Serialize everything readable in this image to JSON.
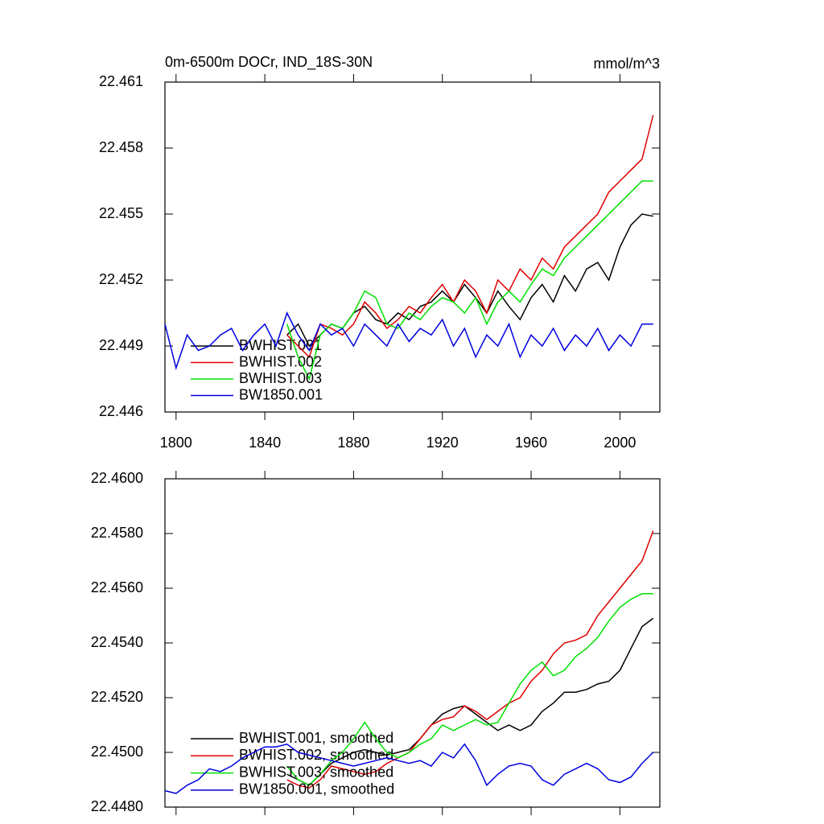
{
  "chart_data": [
    {
      "type": "line",
      "title": "0m-6500m DOCr, IND_18S-30N",
      "units": "mmol/m^3",
      "x": [
        1795,
        1800,
        1805,
        1810,
        1815,
        1820,
        1825,
        1830,
        1835,
        1840,
        1845,
        1850,
        1855,
        1860,
        1865,
        1870,
        1875,
        1880,
        1885,
        1890,
        1895,
        1900,
        1905,
        1910,
        1915,
        1920,
        1925,
        1930,
        1935,
        1940,
        1945,
        1950,
        1955,
        1960,
        1965,
        1970,
        1975,
        1980,
        1985,
        1990,
        1995,
        2000,
        2005,
        2010,
        2015
      ],
      "xlim": [
        1795,
        2018
      ],
      "xticks": [
        1800,
        1840,
        1880,
        1920,
        1960,
        2000
      ],
      "x_tick_labels": true,
      "ylim": [
        22.446,
        22.461
      ],
      "yticks": [
        22.446,
        22.449,
        22.452,
        22.455,
        22.458,
        22.461
      ],
      "series": [
        {
          "name": "BWHIST.001",
          "color": "#000000",
          "values": [
            null,
            null,
            null,
            null,
            null,
            null,
            null,
            null,
            null,
            null,
            null,
            22.4495,
            22.45,
            22.449,
            22.4495,
            22.45,
            22.4498,
            22.4505,
            22.4508,
            22.4502,
            22.45,
            22.4505,
            22.4502,
            22.4508,
            22.451,
            22.4515,
            22.451,
            22.4518,
            22.4512,
            22.4505,
            22.4515,
            22.4508,
            22.4502,
            22.4512,
            22.4518,
            22.451,
            22.4522,
            22.4515,
            22.4525,
            22.4528,
            22.452,
            22.4535,
            22.4545,
            22.455,
            22.4549
          ]
        },
        {
          "name": "BWHIST.002",
          "color": "#e00000",
          "values": [
            null,
            null,
            null,
            null,
            null,
            null,
            null,
            null,
            null,
            null,
            null,
            22.4495,
            22.449,
            22.4485,
            22.45,
            22.4498,
            22.4495,
            22.45,
            22.451,
            22.4505,
            22.4498,
            22.4502,
            22.4508,
            22.4505,
            22.4512,
            22.4518,
            22.451,
            22.452,
            22.4515,
            22.4505,
            22.452,
            22.4515,
            22.4525,
            22.452,
            22.453,
            22.4525,
            22.4535,
            22.454,
            22.4545,
            22.455,
            22.456,
            22.4565,
            22.457,
            22.4575,
            22.4595
          ]
        },
        {
          "name": "BWHIST.003",
          "color": "#00e000",
          "values": [
            null,
            null,
            null,
            null,
            null,
            null,
            null,
            null,
            null,
            null,
            null,
            22.45,
            22.4485,
            22.4475,
            22.4495,
            22.45,
            22.4498,
            22.4505,
            22.4515,
            22.4512,
            22.45,
            22.4498,
            22.4505,
            22.4502,
            22.4508,
            22.4512,
            22.451,
            22.4505,
            22.4512,
            22.45,
            22.451,
            22.4515,
            22.451,
            22.4518,
            22.4525,
            22.4522,
            22.453,
            22.4535,
            22.454,
            22.4545,
            22.455,
            22.4555,
            22.456,
            22.4565,
            22.4565
          ]
        },
        {
          "name": "BW1850.001",
          "color": "#0000e0",
          "values": [
            22.45,
            22.448,
            22.4495,
            22.4488,
            22.449,
            22.4495,
            22.4498,
            22.4488,
            22.4495,
            22.45,
            22.449,
            22.4505,
            22.4495,
            22.4488,
            22.45,
            22.4495,
            22.4498,
            22.449,
            22.45,
            22.4495,
            22.449,
            22.45,
            22.4492,
            22.4498,
            22.4495,
            22.4502,
            22.449,
            22.4498,
            22.4485,
            22.4495,
            22.449,
            22.45,
            22.4485,
            22.4495,
            22.449,
            22.4498,
            22.4488,
            22.4495,
            22.449,
            22.4498,
            22.4488,
            22.4495,
            22.449,
            22.45,
            22.45
          ]
        }
      ]
    },
    {
      "type": "line",
      "x": [
        1795,
        1800,
        1805,
        1810,
        1815,
        1820,
        1825,
        1830,
        1835,
        1840,
        1845,
        1850,
        1855,
        1860,
        1865,
        1870,
        1875,
        1880,
        1885,
        1890,
        1895,
        1900,
        1905,
        1910,
        1915,
        1920,
        1925,
        1930,
        1935,
        1940,
        1945,
        1950,
        1955,
        1960,
        1965,
        1970,
        1975,
        1980,
        1985,
        1990,
        1995,
        2000,
        2005,
        2010,
        2015
      ],
      "xlim": [
        1795,
        2018
      ],
      "xticks": [
        1800,
        1840,
        1880,
        1920,
        1960,
        2000
      ],
      "x_tick_labels": false,
      "ylim": [
        22.448,
        22.46
      ],
      "yticks": [
        {
          "value": 22.448,
          "label": "22.4480"
        },
        {
          "value": 22.45,
          "label": "22.4500"
        },
        {
          "value": 22.452,
          "label": "22.4520"
        },
        {
          "value": 22.454,
          "label": "22.4540"
        },
        {
          "value": 22.456,
          "label": "22.4560"
        },
        {
          "value": 22.458,
          "label": "22.4580"
        },
        {
          "value": 22.46,
          "label": "22.4600"
        }
      ],
      "series": [
        {
          "name": "BWHIST.001, smoothed",
          "color": "#000000",
          "values": [
            null,
            null,
            null,
            null,
            null,
            null,
            null,
            null,
            null,
            null,
            null,
            22.4492,
            22.449,
            22.4488,
            22.4492,
            22.4496,
            22.4498,
            22.45,
            22.4501,
            22.45,
            22.4499,
            22.45,
            22.4501,
            22.4505,
            22.451,
            22.4514,
            22.4516,
            22.4517,
            22.4514,
            22.4511,
            22.4508,
            22.451,
            22.4508,
            22.451,
            22.4515,
            22.4518,
            22.4522,
            22.4522,
            22.4523,
            22.4525,
            22.4526,
            22.453,
            22.4538,
            22.4546,
            22.4549
          ]
        },
        {
          "name": "BWHIST.002, smoothed",
          "color": "#e00000",
          "values": [
            null,
            null,
            null,
            null,
            null,
            null,
            null,
            null,
            null,
            null,
            null,
            22.449,
            22.4488,
            22.4487,
            22.449,
            22.4495,
            22.4494,
            22.4493,
            22.4492,
            22.4493,
            22.4496,
            22.4498,
            22.45,
            22.4505,
            22.451,
            22.4512,
            22.4513,
            22.4517,
            22.4515,
            22.4512,
            22.4515,
            22.4518,
            22.452,
            22.4526,
            22.453,
            22.4536,
            22.454,
            22.4541,
            22.4543,
            22.455,
            22.4555,
            22.456,
            22.4565,
            22.457,
            22.4581
          ]
        },
        {
          "name": "BWHIST.003, smoothed",
          "color": "#00e000",
          "values": [
            null,
            null,
            null,
            null,
            null,
            null,
            null,
            null,
            null,
            null,
            null,
            22.4495,
            22.449,
            22.4488,
            22.4492,
            22.4497,
            22.45,
            22.4505,
            22.4511,
            22.4505,
            22.45,
            22.4498,
            22.45,
            22.4503,
            22.4505,
            22.451,
            22.4508,
            22.451,
            22.4512,
            22.451,
            22.4511,
            22.4518,
            22.4525,
            22.453,
            22.4533,
            22.4528,
            22.453,
            22.4535,
            22.4538,
            22.4542,
            22.4548,
            22.4553,
            22.4556,
            22.4558,
            22.4558
          ]
        },
        {
          "name": "BW1850.001, smoothed",
          "color": "#0000e0",
          "values": [
            22.4486,
            22.4485,
            22.4488,
            22.449,
            22.4494,
            22.4493,
            22.4495,
            22.4498,
            22.45,
            22.4502,
            22.4502,
            22.4503,
            22.45,
            22.4499,
            22.4498,
            22.4497,
            22.4496,
            22.4495,
            22.4496,
            22.4497,
            22.4498,
            22.4497,
            22.4496,
            22.4497,
            22.4495,
            22.45,
            22.4498,
            22.4503,
            22.4497,
            22.4488,
            22.4492,
            22.4495,
            22.4496,
            22.4495,
            22.449,
            22.4488,
            22.4492,
            22.4494,
            22.4496,
            22.4494,
            22.449,
            22.4489,
            22.4491,
            22.4496,
            22.45
          ]
        }
      ]
    }
  ]
}
